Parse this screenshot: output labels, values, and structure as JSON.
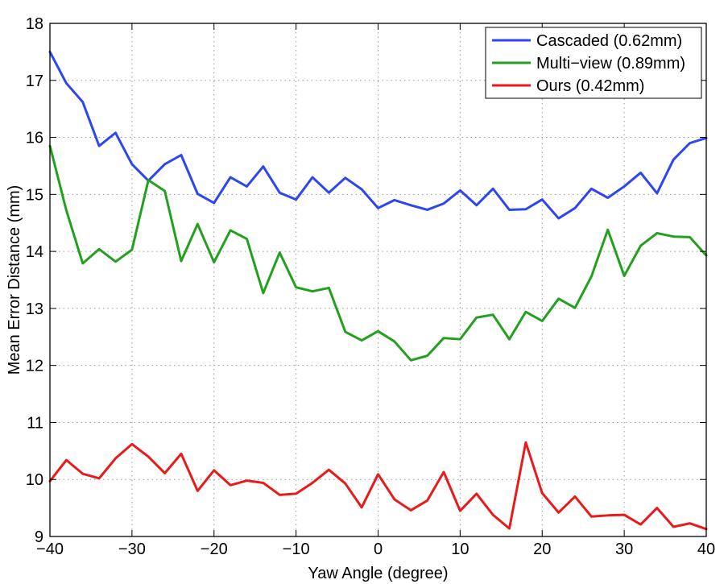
{
  "chart_data": {
    "type": "line",
    "title": "",
    "xlabel": "Yaw Angle (degree)",
    "ylabel": "Mean Error Distance (mm)",
    "xlim": [
      -40,
      40
    ],
    "ylim": [
      9,
      18
    ],
    "xticks": [
      -40,
      -30,
      -20,
      -10,
      0,
      10,
      20,
      30,
      40
    ],
    "xtick_labels": [
      "−40",
      "−30",
      "−20",
      "−10",
      "0",
      "10",
      "20",
      "30",
      "40"
    ],
    "yticks": [
      9,
      10,
      11,
      12,
      13,
      14,
      15,
      16,
      17,
      18
    ],
    "ytick_labels": [
      "9",
      "10",
      "11",
      "12",
      "13",
      "14",
      "15",
      "16",
      "17",
      "18"
    ],
    "grid": true,
    "legend_position": "top-right",
    "x": [
      -40,
      -38,
      -36,
      -34,
      -32,
      -30,
      -28,
      -26,
      -24,
      -22,
      -20,
      -18,
      -16,
      -14,
      -12,
      -10,
      -8,
      -6,
      -4,
      -2,
      0,
      2,
      4,
      6,
      8,
      10,
      12,
      14,
      16,
      18,
      20,
      22,
      24,
      26,
      28,
      30,
      32,
      34,
      36,
      38,
      40
    ],
    "series": [
      {
        "name": "Cascaded (0.62mm)",
        "color": "#2d46f0",
        "values": [
          17.5,
          16.95,
          16.62,
          15.85,
          16.08,
          15.53,
          15.24,
          15.53,
          15.69,
          15.01,
          14.85,
          15.3,
          15.14,
          15.49,
          15.03,
          14.91,
          15.3,
          15.03,
          15.29,
          15.09,
          14.76,
          14.9,
          14.81,
          14.73,
          14.84,
          15.07,
          14.81,
          15.1,
          14.73,
          14.74,
          14.91,
          14.58,
          14.76,
          15.1,
          14.94,
          15.14,
          15.38,
          15.02,
          15.61,
          15.9,
          15.99
        ]
      },
      {
        "name": "Multi−view (0.89mm)",
        "color": "#22a01e",
        "values": [
          15.85,
          14.72,
          13.79,
          14.04,
          13.82,
          14.03,
          15.25,
          15.06,
          13.83,
          14.48,
          13.81,
          14.37,
          14.22,
          13.27,
          13.98,
          13.37,
          13.3,
          13.36,
          12.59,
          12.44,
          12.6,
          12.42,
          12.09,
          12.17,
          12.48,
          12.46,
          12.84,
          12.89,
          12.46,
          12.94,
          12.78,
          13.17,
          13.01,
          13.56,
          14.38,
          13.57,
          14.1,
          14.32,
          14.26,
          14.25,
          13.93
        ]
      },
      {
        "name": "Ours (0.42mm)",
        "color": "#e81a1a",
        "values": [
          9.97,
          10.34,
          10.1,
          10.02,
          10.37,
          10.62,
          10.4,
          10.11,
          10.45,
          9.8,
          10.16,
          9.9,
          9.98,
          9.94,
          9.73,
          9.75,
          9.94,
          10.17,
          9.93,
          9.51,
          10.09,
          9.65,
          9.46,
          9.63,
          10.13,
          9.45,
          9.75,
          9.38,
          9.14,
          10.65,
          9.76,
          9.42,
          9.7,
          9.35,
          9.37,
          9.38,
          9.21,
          9.5,
          9.17,
          9.23,
          9.13
        ]
      }
    ]
  }
}
